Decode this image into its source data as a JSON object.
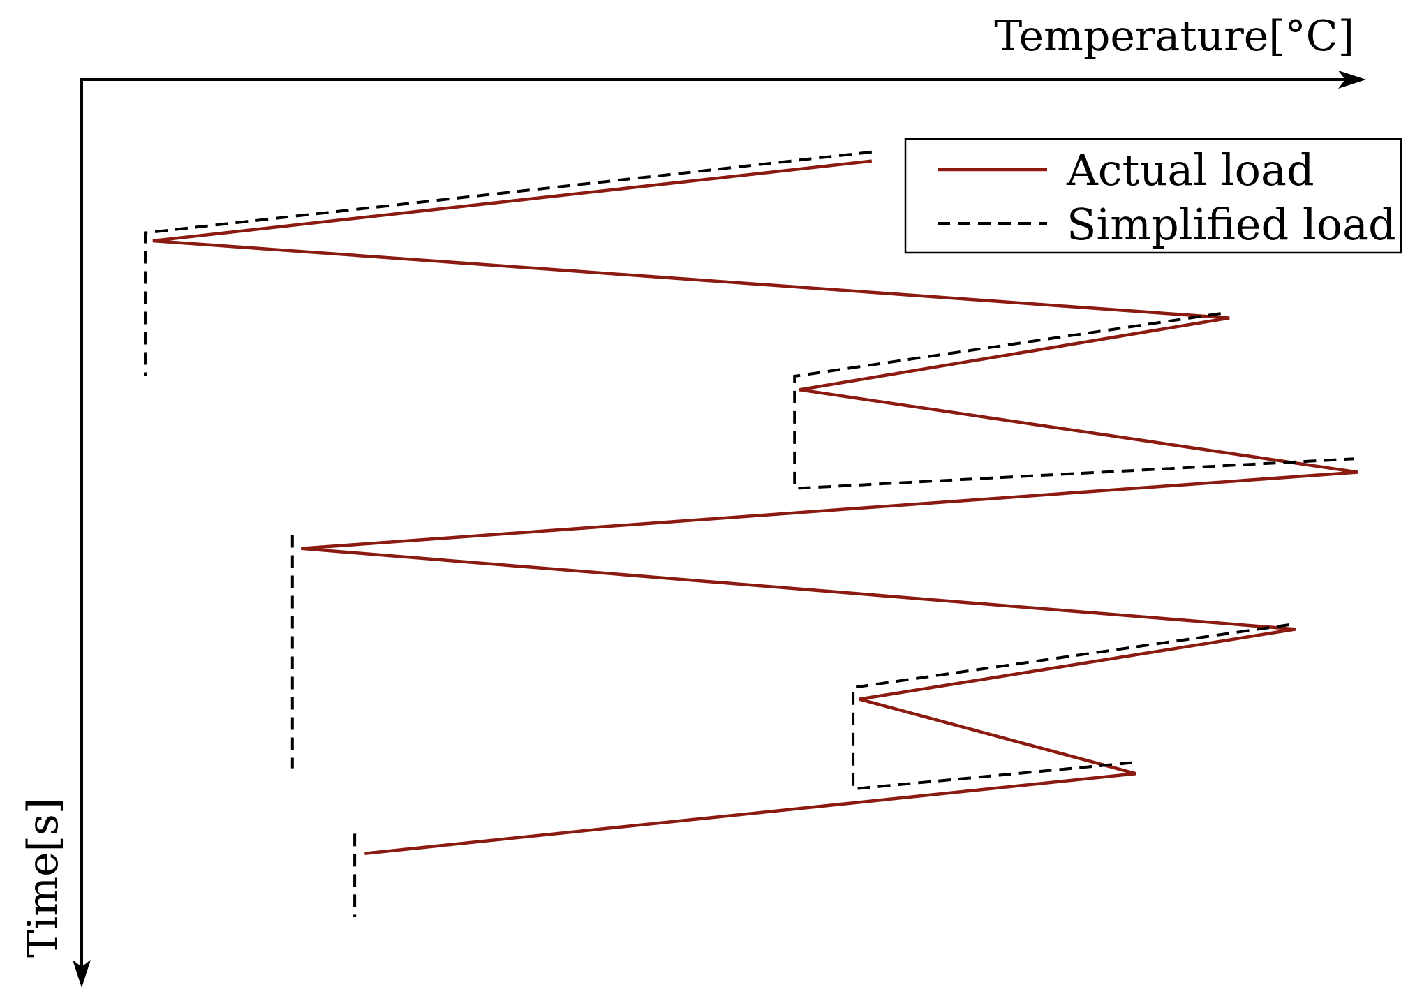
{
  "chart_data": {
    "type": "line",
    "title": "",
    "xlabel": "Temperature[°C]",
    "ylabel": "Time[s]",
    "xlim": [
      0,
      100
    ],
    "ylim": [
      0,
      100
    ],
    "y_inverted": true,
    "grid": false,
    "legend_position": "top-right",
    "series": [
      {
        "name": "Actual load",
        "style": "solid",
        "color": "#8b1a10",
        "points": [
          [
            61.0,
            9.0
          ],
          [
            3.3,
            17.9
          ],
          [
            89.7,
            26.5
          ],
          [
            55.2,
            34.5
          ],
          [
            100.0,
            43.7
          ],
          [
            15.2,
            52.2
          ],
          [
            95.0,
            61.2
          ],
          [
            60.0,
            69.0
          ],
          [
            82.2,
            77.3
          ],
          [
            20.3,
            86.2
          ]
        ]
      },
      {
        "name": "Simplified load",
        "style": "dashed",
        "color": "#000000",
        "points": [
          [
            61.0,
            8.0
          ],
          [
            2.7,
            17.0
          ],
          [
            2.7,
            33.0
          ],
          null,
          [
            89.0,
            26.0
          ],
          [
            54.8,
            33.0
          ],
          [
            54.8,
            45.5
          ],
          [
            99.7,
            42.2
          ],
          null,
          [
            14.5,
            50.7
          ],
          [
            14.5,
            76.7
          ],
          null,
          [
            94.5,
            60.7
          ],
          [
            59.5,
            67.7
          ],
          [
            59.5,
            79.0
          ],
          [
            82.5,
            76.0
          ],
          null,
          [
            19.5,
            84.0
          ],
          [
            19.5,
            93.3
          ]
        ]
      }
    ]
  }
}
